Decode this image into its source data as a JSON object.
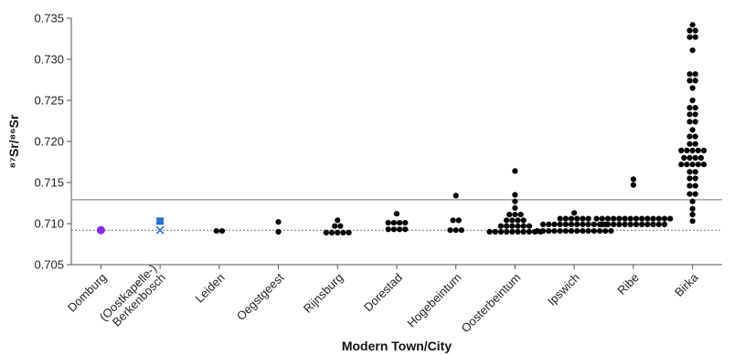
{
  "chart_data": {
    "type": "scatter",
    "title": "",
    "xlabel": "Modern Town/City",
    "ylabel": "⁸⁷Sr/⁸⁶Sr",
    "ylim": [
      0.705,
      0.735
    ],
    "yticks": [
      "0.705",
      "0.710",
      "0.715",
      "0.720",
      "0.725",
      "0.730",
      "0.735"
    ],
    "grid": false,
    "legend": "none",
    "categories": [
      "Domburg",
      "(Oostkapelle-)\nBerkenbosch",
      "Leiden",
      "Oegstgeest",
      "Rijnsburg",
      "Dorestad",
      "Hogebeintum",
      "Oosterbeintum",
      "Ipswich",
      "Ribe",
      "Birka"
    ],
    "reference_lines": [
      {
        "y": 0.7129,
        "style": "solid",
        "color": "#777777"
      },
      {
        "y": 0.7092,
        "style": "dotted",
        "color": "#777777"
      }
    ],
    "colors": {
      "default": "#000000",
      "purple": "#8a2be2",
      "blue": "#2a6fd6"
    },
    "series": [
      {
        "category": "Domburg",
        "marker": "circle",
        "color": "#8a2be2",
        "rows": [
          {
            "y": 0.7092,
            "n": 1
          }
        ]
      },
      {
        "category": "(Oostkapelle-)\nBerkenbosch",
        "marker": "square",
        "color": "#2a6fd6",
        "rows": [
          {
            "y": 0.7103,
            "n": 1
          }
        ]
      },
      {
        "category": "(Oostkapelle-)\nBerkenbosch",
        "marker": "x",
        "color": "#2a6fd6",
        "rows": [
          {
            "y": 0.7092,
            "n": 1
          }
        ]
      },
      {
        "category": "Leiden",
        "marker": "circle",
        "color": "#000000",
        "rows": [
          {
            "y": 0.7091,
            "n": 2
          }
        ]
      },
      {
        "category": "Oegstgeest",
        "marker": "circle",
        "color": "#000000",
        "rows": [
          {
            "y": 0.7102,
            "n": 1
          },
          {
            "y": 0.709,
            "n": 1
          }
        ]
      },
      {
        "category": "Rijnsburg",
        "marker": "circle",
        "color": "#000000",
        "rows": [
          {
            "y": 0.7104,
            "n": 1
          },
          {
            "y": 0.7097,
            "n": 2
          },
          {
            "y": 0.7089,
            "n": 5
          }
        ]
      },
      {
        "category": "Dorestad",
        "marker": "circle",
        "color": "#000000",
        "rows": [
          {
            "y": 0.7112,
            "n": 1
          },
          {
            "y": 0.7101,
            "n": 4
          },
          {
            "y": 0.7093,
            "n": 4
          }
        ]
      },
      {
        "category": "Hogebeintum",
        "marker": "circle",
        "color": "#000000",
        "rows": [
          {
            "y": 0.7134,
            "n": 1
          },
          {
            "y": 0.7104,
            "n": 2
          },
          {
            "y": 0.7092,
            "n": 3
          }
        ]
      },
      {
        "category": "Oosterbeintum",
        "marker": "circle",
        "color": "#000000",
        "rows": [
          {
            "y": 0.7164,
            "n": 1
          },
          {
            "y": 0.7135,
            "n": 1
          },
          {
            "y": 0.7127,
            "n": 1
          },
          {
            "y": 0.7119,
            "n": 1
          },
          {
            "y": 0.7111,
            "n": 3
          },
          {
            "y": 0.7104,
            "n": 4
          },
          {
            "y": 0.7097,
            "n": 6
          },
          {
            "y": 0.709,
            "n": 10
          }
        ]
      },
      {
        "category": "Ipswich",
        "marker": "circle",
        "color": "#000000",
        "rows": [
          {
            "y": 0.7113,
            "n": 1
          },
          {
            "y": 0.7106,
            "n": 6
          },
          {
            "y": 0.7099,
            "n": 12
          },
          {
            "y": 0.7091,
            "n": 14
          }
        ]
      },
      {
        "category": "Ribe",
        "marker": "circle",
        "color": "#000000",
        "rows": [
          {
            "y": 0.7154,
            "n": 1
          },
          {
            "y": 0.7147,
            "n": 1
          },
          {
            "y": 0.7106,
            "n": 14
          },
          {
            "y": 0.7099,
            "n": 12
          }
        ]
      },
      {
        "category": "Birka",
        "marker": "circle",
        "color": "#000000",
        "rows": [
          {
            "y": 0.7342,
            "n": 1
          },
          {
            "y": 0.7335,
            "n": 2
          },
          {
            "y": 0.7327,
            "n": 2
          },
          {
            "y": 0.7311,
            "n": 1
          },
          {
            "y": 0.7282,
            "n": 2
          },
          {
            "y": 0.7274,
            "n": 2
          },
          {
            "y": 0.7265,
            "n": 1
          },
          {
            "y": 0.725,
            "n": 1
          },
          {
            "y": 0.7241,
            "n": 2
          },
          {
            "y": 0.7233,
            "n": 2
          },
          {
            "y": 0.7224,
            "n": 2
          },
          {
            "y": 0.7214,
            "n": 1
          },
          {
            "y": 0.7206,
            "n": 2
          },
          {
            "y": 0.7197,
            "n": 2
          },
          {
            "y": 0.7189,
            "n": 5
          },
          {
            "y": 0.718,
            "n": 4
          },
          {
            "y": 0.7172,
            "n": 5
          },
          {
            "y": 0.7163,
            "n": 2
          },
          {
            "y": 0.7155,
            "n": 2
          },
          {
            "y": 0.7146,
            "n": 2
          },
          {
            "y": 0.7136,
            "n": 2
          },
          {
            "y": 0.7127,
            "n": 1
          },
          {
            "y": 0.7118,
            "n": 1
          },
          {
            "y": 0.7111,
            "n": 1
          },
          {
            "y": 0.7103,
            "n": 1
          }
        ]
      }
    ]
  }
}
